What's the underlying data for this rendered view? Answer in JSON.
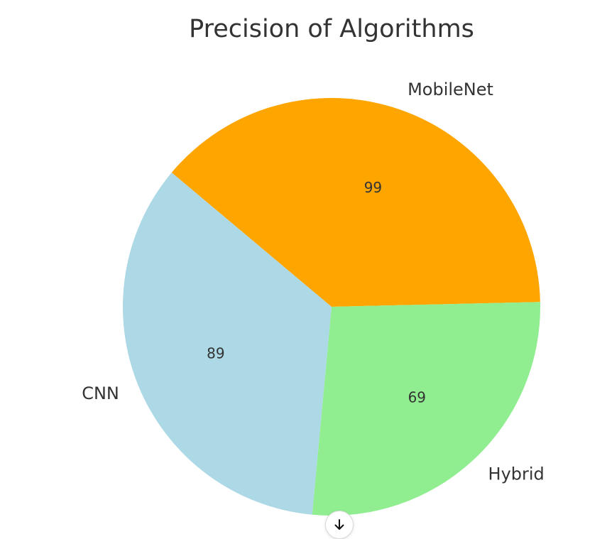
{
  "chart_data": {
    "type": "pie",
    "title": "Precision of Algorithms",
    "categories": [
      "MobileNet",
      "Hybrid",
      "CNN"
    ],
    "values": [
      99,
      69,
      89
    ],
    "colors": [
      "#FFA500",
      "#90EE90",
      "#ADD8E6"
    ],
    "value_labels": [
      "99",
      "69",
      "89"
    ],
    "start_angle_deg": 140,
    "direction": "clockwise",
    "legend": "none"
  },
  "ui": {
    "scroll_button_icon": "arrow-down-icon"
  }
}
